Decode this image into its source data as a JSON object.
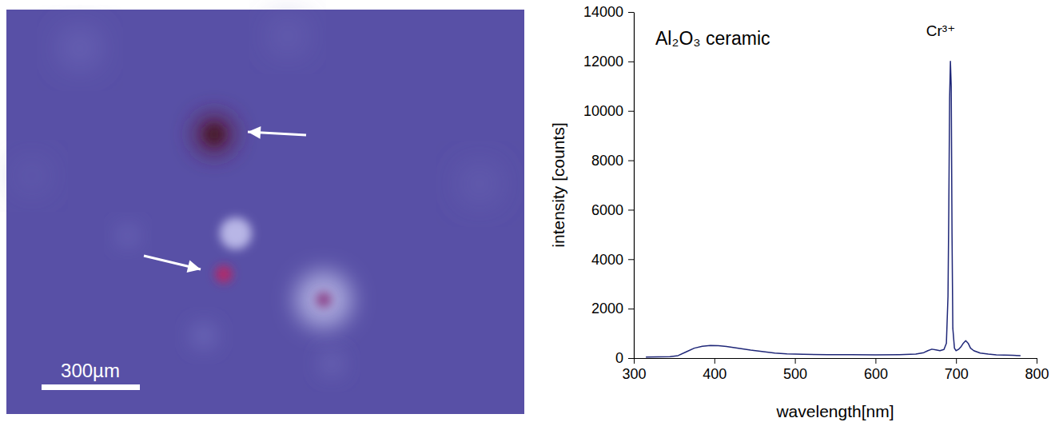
{
  "micrograph": {
    "scale_bar_label": "300µm"
  },
  "chart_data": {
    "type": "line",
    "annotations": [
      "Al₂O₃ ceramic",
      "Cr³⁺"
    ],
    "x_label": "wavelength[nm]",
    "y_label": "intensity [counts]",
    "x": [
      315,
      330,
      345,
      355,
      365,
      375,
      385,
      395,
      405,
      415,
      425,
      435,
      445,
      455,
      465,
      475,
      490,
      510,
      540,
      570,
      600,
      630,
      650,
      660,
      665,
      670,
      675,
      680,
      685,
      688,
      690,
      691,
      692,
      693,
      694,
      695,
      696,
      698,
      700,
      703,
      706,
      709,
      712,
      715,
      718,
      722,
      730,
      740,
      750,
      760,
      770,
      780
    ],
    "values": [
      40,
      45,
      60,
      100,
      250,
      400,
      480,
      510,
      500,
      470,
      420,
      370,
      320,
      280,
      240,
      200,
      170,
      150,
      140,
      140,
      130,
      140,
      160,
      220,
      300,
      360,
      330,
      300,
      350,
      600,
      2500,
      6000,
      10500,
      12000,
      11000,
      5000,
      1200,
      400,
      300,
      350,
      450,
      600,
      700,
      600,
      400,
      300,
      200,
      160,
      130,
      120,
      110,
      100
    ],
    "color": "#1f2778",
    "xlim": [
      300,
      800
    ],
    "xticks": [
      300,
      400,
      500,
      600,
      700,
      800
    ],
    "ylim": [
      0,
      14000
    ],
    "yticks": [
      0,
      2000,
      4000,
      6000,
      8000,
      10000,
      12000,
      14000
    ],
    "grid": false
  }
}
